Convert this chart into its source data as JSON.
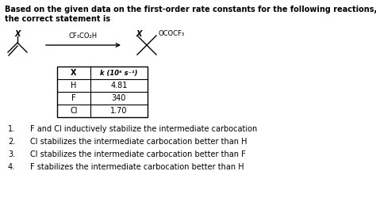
{
  "bg_color": "#ffffff",
  "title_line1": "Based on the given data on the first-order rate constants for the following reactions,",
  "title_line2": "the correct statement is",
  "reagent": "CF₃CO₂H",
  "table_headers": [
    "X",
    "k (10⁵ s⁻¹)"
  ],
  "table_rows": [
    [
      "H",
      "4.81"
    ],
    [
      "F",
      "340"
    ],
    [
      "Cl",
      "1.70"
    ]
  ],
  "options": [
    "F and Cl inductively stabilize the intermediate carbocation",
    "Cl stabilizes the intermediate carbocation better than H",
    "Cl stabilizes the intermediate carbocation better than F",
    "F stabilizes the intermediate carbocation better than H"
  ],
  "font_size_main": 7.0,
  "font_size_small": 6.0,
  "font_size_chem": 6.5
}
